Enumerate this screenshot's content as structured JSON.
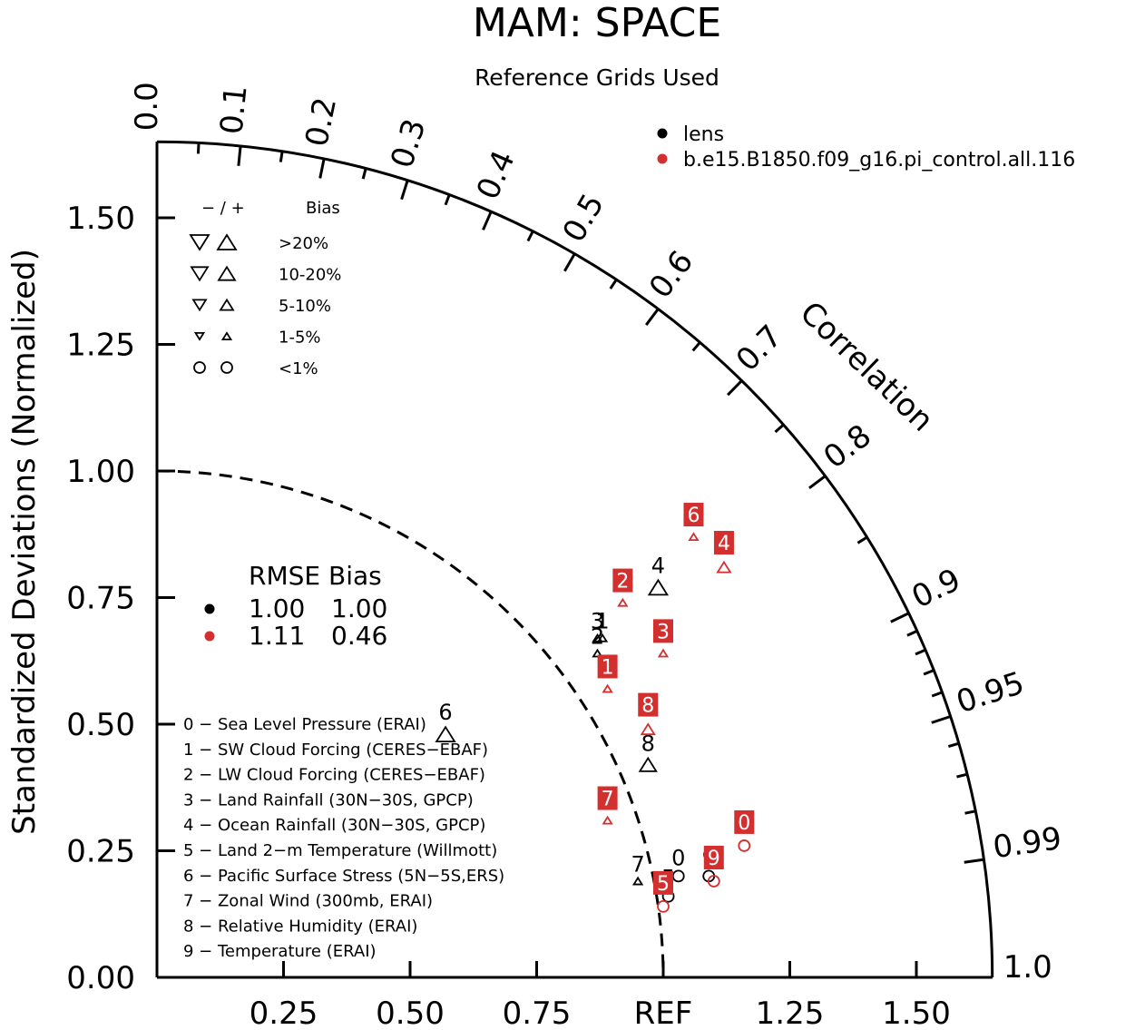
{
  "title": "MAM: SPACE",
  "subtitle": "Reference Grids Used",
  "chart_data": {
    "type": "taylor",
    "title": "MAM: SPACE",
    "subtitle": "Reference Grids Used",
    "ylabel": "Standardized Deviations (Normalized)",
    "corr_label": "Correlation",
    "std_ticks": [
      "0.00",
      "0.25",
      "0.50",
      "0.75",
      "1.00",
      "1.25",
      "1.50"
    ],
    "x_ticks": [
      "0.25",
      "0.50",
      "0.75",
      "REF",
      "1.25",
      "1.50"
    ],
    "corr_ticks": [
      "0.0",
      "0.1",
      "0.2",
      "0.3",
      "0.4",
      "0.5",
      "0.6",
      "0.7",
      "0.8",
      "0.9",
      "0.95",
      "0.99",
      "1.0"
    ],
    "std_range": [
      0,
      1.65
    ],
    "colors": {
      "lens": "#000000",
      "pi_control": "#d32f2f"
    },
    "series": [
      {
        "name": "lens",
        "color": "#000000",
        "points": [
          {
            "id": "0",
            "x": 1.03,
            "y": 0.2,
            "bias": "<1%",
            "dir": "+"
          },
          {
            "id": "1",
            "x": 0.88,
            "y": 0.67,
            "bias": "1-5%",
            "dir": "+"
          },
          {
            "id": "2",
            "x": 0.87,
            "y": 0.64,
            "bias": "1-5%",
            "dir": "+"
          },
          {
            "id": "3",
            "x": 0.87,
            "y": 0.67,
            "bias": "1-5%",
            "dir": "+"
          },
          {
            "id": "4",
            "x": 0.99,
            "y": 0.77,
            "bias": ">20%",
            "dir": "+"
          },
          {
            "id": "5",
            "x": 1.01,
            "y": 0.16,
            "bias": "<1%",
            "dir": "+"
          },
          {
            "id": "6",
            "x": 0.57,
            "y": 0.48,
            "bias": ">20%",
            "dir": "+"
          },
          {
            "id": "7",
            "x": 0.95,
            "y": 0.19,
            "bias": "1-5%",
            "dir": "+"
          },
          {
            "id": "8",
            "x": 0.97,
            "y": 0.42,
            "bias": "10-20%",
            "dir": "+"
          },
          {
            "id": "9",
            "x": 1.09,
            "y": 0.2,
            "bias": "<1%",
            "dir": "+"
          }
        ]
      },
      {
        "name": "b.e15.B1850.f09_g16.pi_control.all.116",
        "color": "#d32f2f",
        "points": [
          {
            "id": "0",
            "x": 1.16,
            "y": 0.26,
            "bias": "<1%",
            "dir": "+"
          },
          {
            "id": "1",
            "x": 0.89,
            "y": 0.57,
            "bias": "1-5%",
            "dir": "+"
          },
          {
            "id": "2",
            "x": 0.92,
            "y": 0.74,
            "bias": "1-5%",
            "dir": "+"
          },
          {
            "id": "3",
            "x": 1.0,
            "y": 0.64,
            "bias": "1-5%",
            "dir": "+"
          },
          {
            "id": "4",
            "x": 1.12,
            "y": 0.81,
            "bias": "5-10%",
            "dir": "+"
          },
          {
            "id": "5",
            "x": 1.0,
            "y": 0.14,
            "bias": "<1%",
            "dir": "+"
          },
          {
            "id": "6",
            "x": 1.06,
            "y": 0.87,
            "bias": "1-5%",
            "dir": "+"
          },
          {
            "id": "7",
            "x": 0.89,
            "y": 0.31,
            "bias": "1-5%",
            "dir": "+"
          },
          {
            "id": "8",
            "x": 0.97,
            "y": 0.49,
            "bias": "5-10%",
            "dir": "+"
          },
          {
            "id": "9",
            "x": 1.1,
            "y": 0.19,
            "bias": "<1%",
            "dir": "+"
          }
        ]
      }
    ],
    "legend": {
      "cases": [
        "lens",
        "b.e15.B1850.f09_g16.pi_control.all.116"
      ],
      "bias_header_sign": "− / +",
      "bias_header": "Bias",
      "bias_rows": [
        ">20%",
        "10-20%",
        "5-10%",
        "1-5%",
        "<1%"
      ],
      "rmse_header": "RMSE Bias",
      "rmse_rows": [
        {
          "rmse": "1.00",
          "bias": "1.00"
        },
        {
          "rmse": "1.11",
          "bias": "0.46"
        }
      ],
      "variables": [
        "0 − Sea Level Pressure (ERAI)",
        "1 − SW Cloud Forcing (CERES−EBAF)",
        "2 − LW Cloud Forcing (CERES−EBAF)",
        "3 − Land Rainfall (30N−30S, GPCP)",
        "4 − Ocean Rainfall (30N−30S, GPCP)",
        "5 − Land 2−m Temperature (Willmott)",
        "6 − Pacific Surface Stress (5N−5S,ERS)",
        "7 − Zonal Wind (300mb, ERAI)",
        "8 − Relative Humidity (ERAI)",
        "9 − Temperature (ERAI)"
      ]
    }
  }
}
